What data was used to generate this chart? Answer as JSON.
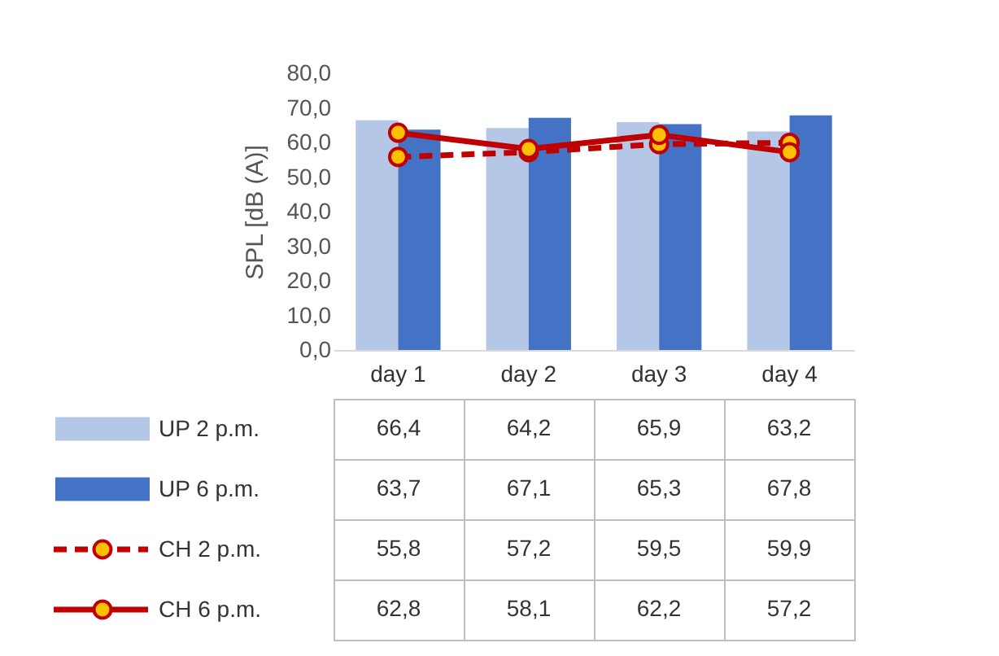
{
  "chart_data": {
    "type": "bar",
    "ylabel": "SPL  [dB (A)]",
    "categories": [
      "day 1",
      "day 2",
      "day 3",
      "day 4"
    ],
    "series": [
      {
        "name": "UP 2 p.m.",
        "color": "#b4c7e7",
        "values": [
          66.4,
          64.2,
          65.9,
          63.2
        ],
        "value_labels": [
          "66,4",
          "64,2",
          "65,9",
          "63,2"
        ]
      },
      {
        "name": "UP 6 p.m.",
        "color": "#4472c4",
        "values": [
          63.7,
          67.1,
          65.3,
          67.8
        ],
        "value_labels": [
          "63,7",
          "67,1",
          "65,3",
          "67,8"
        ]
      },
      {
        "name": "CH 2 p.m.",
        "type": "line",
        "line_style": "dashed",
        "color": "#c00000",
        "values": [
          55.8,
          57.2,
          59.5,
          59.9
        ],
        "value_labels": [
          "55,8",
          "57,2",
          "59,5",
          "59,9"
        ]
      },
      {
        "name": "CH 6 p.m.",
        "type": "line",
        "line_style": "solid",
        "color": "#c00000",
        "values": [
          62.8,
          58.1,
          62.2,
          57.2
        ],
        "value_labels": [
          "62,8",
          "58,1",
          "62,2",
          "57,2"
        ]
      }
    ],
    "ylim": [
      0,
      80
    ],
    "yticks": [
      {
        "value": 0,
        "label": "0,0"
      },
      {
        "value": 10,
        "label": "10,0"
      },
      {
        "value": 20,
        "label": "20,0"
      },
      {
        "value": 30,
        "label": "30,0"
      },
      {
        "value": 40,
        "label": "40,0"
      },
      {
        "value": 50,
        "label": "50,0"
      },
      {
        "value": 60,
        "label": "60,0"
      },
      {
        "value": 70,
        "label": "70,0"
      },
      {
        "value": 80,
        "label": "80,0"
      }
    ],
    "grid": false,
    "legend": "bottom",
    "marker": "circle"
  }
}
